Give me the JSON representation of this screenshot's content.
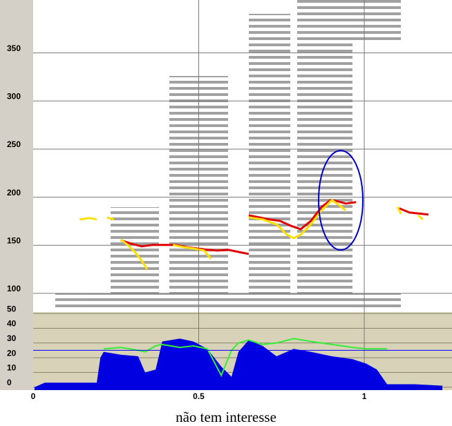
{
  "chart_data": [
    {
      "type": "line",
      "xlim": [
        0,
        1.265
      ],
      "ylim": [
        82,
        405
      ],
      "yticks": [
        100,
        150,
        200,
        250,
        300,
        350
      ],
      "grid": true,
      "series": [
        {
          "color": "#e00000",
          "x": [
            0.265,
            0.296,
            0.328,
            0.359,
            0.401,
            0.432,
            0.463,
            0.495,
            0.526,
            0.557,
            0.589,
            0.62,
            0.651,
            0.65,
            0.651,
            0.683,
            0.714,
            0.745,
            0.777,
            0.808,
            0.839,
            0.871,
            0.898,
            0.923,
            0.944,
            0.975,
            1.0,
            1.106,
            1.136,
            1.194
          ],
          "values": [
            155.3,
            151.7,
            148.9,
            150.3,
            150.3,
            150.3,
            148.1,
            146.7,
            145.3,
            144.5,
            145.3,
            143.1,
            141,
            null,
            181.2,
            179,
            176.9,
            175.4,
            170.4,
            166.8,
            175.4,
            189.8,
            197,
            195.5,
            193.4,
            194.8,
            null,
            188.4,
            184.1,
            181.9
          ]
        },
        {
          "color": "#ffe000",
          "x": [
            0.14,
            0.171,
            0.192,
            0.2,
            0.223,
            0.244,
            0.25,
            0.265,
            0.286,
            0.307,
            0.328,
            0.344,
            0.4,
            0.422,
            0.453,
            0.484,
            0.516,
            0.537,
            0.6,
            0.651,
            0.693,
            0.735,
            0.766,
            0.787,
            0.808,
            0.839,
            0.871,
            0.902,
            0.923,
            0.944,
            1.0,
            1.1,
            1.111,
            1.15,
            1.163,
            1.177
          ],
          "values": [
            176.9,
            178.3,
            176.9,
            null,
            179,
            176.9,
            null,
            156,
            150.3,
            143.1,
            133.8,
            125.1,
            null,
            150.3,
            148.1,
            146.7,
            144.5,
            135.9,
            null,
            179,
            176.9,
            171.8,
            161.1,
            157.5,
            161.1,
            171.8,
            186.2,
            197,
            192,
            186.2,
            null,
            189.8,
            182.6,
            null,
            181.2,
            176.9
          ]
        }
      ]
    },
    {
      "type": "area",
      "xlim": [
        0,
        1.265
      ],
      "ylim": [
        -2,
        51
      ],
      "yticks": [
        0,
        10,
        20,
        30,
        40,
        50
      ],
      "xticks": [
        0,
        0.5,
        1
      ],
      "grid": true,
      "reference_line": {
        "value": 25,
        "color": "#0000ff"
      },
      "series": [
        {
          "color": "#0000e0",
          "x": [
            0.004,
            0.035,
            0.109,
            0.192,
            0.203,
            0.213,
            0.265,
            0.317,
            0.338,
            0.37,
            0.39,
            0.443,
            0.484,
            0.526,
            0.568,
            0.599,
            0.62,
            0.651,
            0.693,
            0.735,
            0.787,
            0.839,
            0.902,
            0.965,
            1.006,
            1.038,
            1.069,
            1.152,
            1.236
          ],
          "values": [
            0,
            3,
            3,
            3,
            20,
            24,
            22,
            21,
            10,
            12,
            31,
            33,
            31,
            26,
            14,
            7,
            24,
            32,
            28,
            21,
            26,
            24,
            21,
            19,
            16,
            12,
            2,
            2,
            1
          ]
        },
        {
          "color": "#33ee33",
          "x": [
            0.213,
            0.265,
            0.317,
            0.338,
            0.37,
            0.39,
            0.443,
            0.484,
            0.526,
            0.568,
            0.599,
            0.62,
            0.651,
            0.693,
            0.735,
            0.787,
            0.839,
            0.902,
            0.965,
            1.006,
            1.038,
            1.069
          ],
          "values": [
            26,
            27,
            25,
            24,
            28,
            29,
            27,
            28,
            26,
            8,
            25,
            30,
            32,
            29,
            30,
            33,
            31,
            29,
            27,
            26,
            26,
            26
          ]
        }
      ]
    }
  ],
  "caption": "não tem interesse"
}
